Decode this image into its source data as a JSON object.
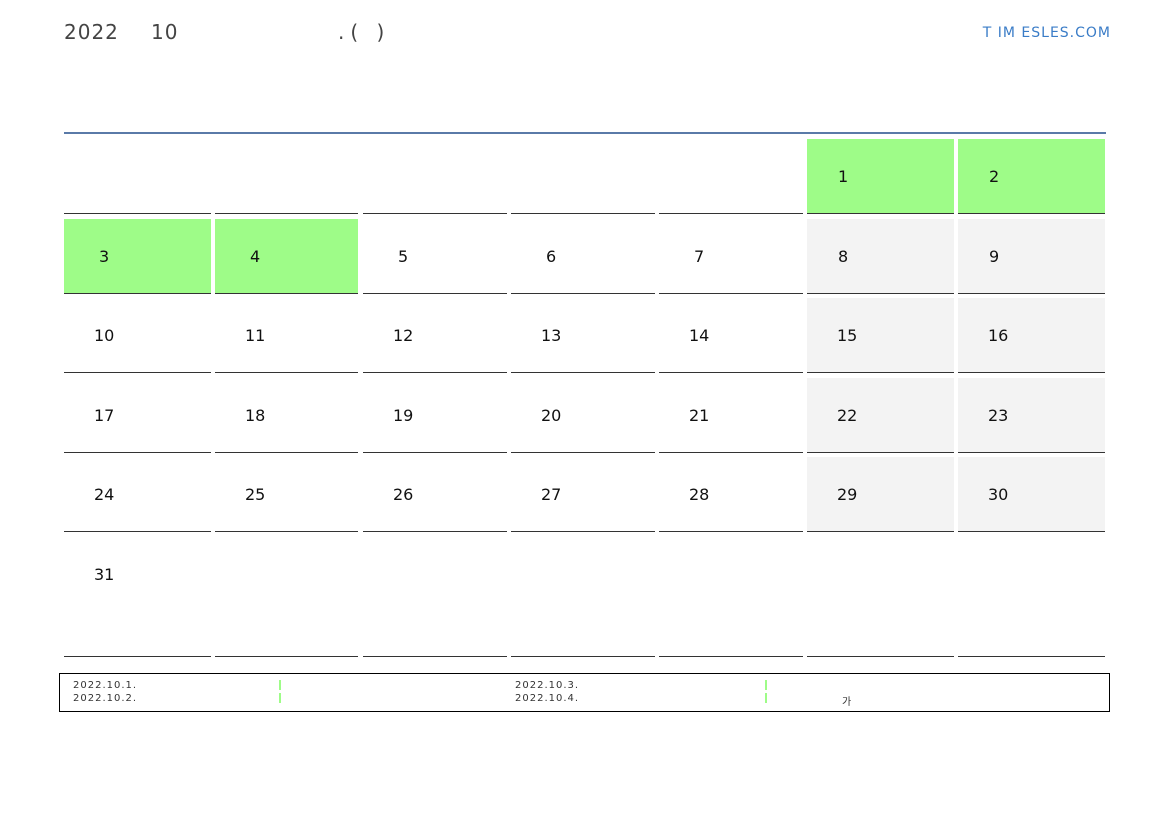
{
  "header": {
    "year": "2022",
    "month": "10",
    "suffix": ".(        )",
    "brand": "T IM ESLES.COM"
  },
  "colors": {
    "holiday": "#9efc88",
    "weekend": "#f3f3f3",
    "rule": "#5a7aa8",
    "brand": "#3a7cc7"
  },
  "weeks": [
    [
      null,
      null,
      null,
      null,
      null,
      {
        "d": "1",
        "t": "holiday"
      },
      {
        "d": "2",
        "t": "holiday"
      }
    ],
    [
      {
        "d": "3",
        "t": "holiday"
      },
      {
        "d": "4",
        "t": "holiday"
      },
      {
        "d": "5"
      },
      {
        "d": "6"
      },
      {
        "d": "7"
      },
      {
        "d": "8",
        "t": "weekend"
      },
      {
        "d": "9",
        "t": "weekend"
      }
    ],
    [
      {
        "d": "10"
      },
      {
        "d": "11"
      },
      {
        "d": "12"
      },
      {
        "d": "13"
      },
      {
        "d": "14"
      },
      {
        "d": "15",
        "t": "weekend"
      },
      {
        "d": "16",
        "t": "weekend"
      }
    ],
    [
      {
        "d": "17"
      },
      {
        "d": "18"
      },
      {
        "d": "19"
      },
      {
        "d": "20"
      },
      {
        "d": "21"
      },
      {
        "d": "22",
        "t": "weekend"
      },
      {
        "d": "23",
        "t": "weekend"
      }
    ],
    [
      {
        "d": "24"
      },
      {
        "d": "25"
      },
      {
        "d": "26"
      },
      {
        "d": "27"
      },
      {
        "d": "28"
      },
      {
        "d": "29",
        "t": "weekend"
      },
      {
        "d": "30",
        "t": "weekend"
      }
    ],
    [
      {
        "d": "31"
      },
      null,
      null,
      null,
      null,
      null,
      null
    ]
  ],
  "legend": {
    "items": [
      "2022.10.1.",
      "2022.10.2.",
      "2022.10.3.",
      "2022.10.4."
    ],
    "note": "가"
  }
}
